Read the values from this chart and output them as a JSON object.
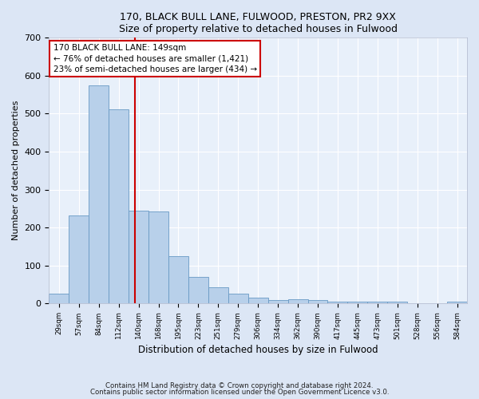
{
  "title1": "170, BLACK BULL LANE, FULWOOD, PRESTON, PR2 9XX",
  "title2": "Size of property relative to detached houses in Fulwood",
  "xlabel": "Distribution of detached houses by size in Fulwood",
  "ylabel": "Number of detached properties",
  "categories": [
    "29sqm",
    "57sqm",
    "84sqm",
    "112sqm",
    "140sqm",
    "168sqm",
    "195sqm",
    "223sqm",
    "251sqm",
    "279sqm",
    "306sqm",
    "334sqm",
    "362sqm",
    "390sqm",
    "417sqm",
    "445sqm",
    "473sqm",
    "501sqm",
    "528sqm",
    "556sqm",
    "584sqm"
  ],
  "values": [
    27,
    232,
    575,
    512,
    245,
    242,
    125,
    70,
    42,
    27,
    16,
    10,
    12,
    10,
    6,
    5,
    5,
    6,
    0,
    0,
    5
  ],
  "bar_color": "#b8d0ea",
  "bar_edge_color": "#6899c4",
  "annotation_text": "170 BLACK BULL LANE: 149sqm\n← 76% of detached houses are smaller (1,421)\n23% of semi-detached houses are larger (434) →",
  "annotation_box_color": "#ffffff",
  "annotation_box_edge_color": "#cc0000",
  "vline_color": "#cc0000",
  "footer_line1": "Contains HM Land Registry data © Crown copyright and database right 2024.",
  "footer_line2": "Contains public sector information licensed under the Open Government Licence v3.0.",
  "ylim": [
    0,
    700
  ],
  "yticks": [
    0,
    100,
    200,
    300,
    400,
    500,
    600,
    700
  ],
  "bg_color": "#dce6f5",
  "plot_bg_color": "#e8f0fa",
  "grid_color": "#ffffff",
  "vline_x": 3.821
}
